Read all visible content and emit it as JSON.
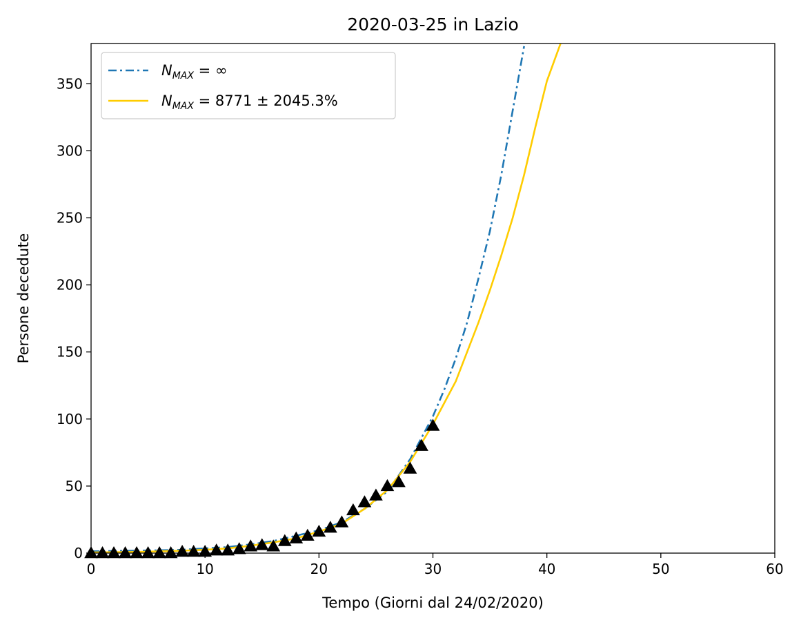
{
  "chart_data": {
    "type": "line",
    "title": "2020-03-25 in Lazio",
    "xlabel": "Tempo (Giorni dal 24/02/2020)",
    "ylabel": "Persone decedute",
    "xlim": [
      0,
      60
    ],
    "ylim": [
      0,
      380
    ],
    "xticks": [
      0,
      10,
      20,
      30,
      40,
      50,
      60
    ],
    "yticks": [
      0,
      50,
      100,
      150,
      200,
      250,
      300,
      350
    ],
    "grid": false,
    "legend_position": "top-left",
    "series": [
      {
        "name": "N_MAX = ∞",
        "kind": "fit-line",
        "style": "dash-dot",
        "color": "#1f77b4",
        "x": [
          0,
          2,
          4,
          6,
          8,
          10,
          12,
          14,
          16,
          18,
          20,
          22,
          24,
          26,
          28,
          30,
          31,
          32,
          33,
          34,
          35,
          36,
          37,
          38
        ],
        "y": [
          1.3,
          1.6,
          1.8,
          2.1,
          2.5,
          3.5,
          4.5,
          6.5,
          9,
          13,
          17,
          23,
          33,
          46,
          70,
          102,
          122,
          145,
          172,
          205,
          240,
          282,
          330,
          378
        ]
      },
      {
        "name": "N_MAX = 8771 ± 2045.3%",
        "kind": "fit-line",
        "style": "solid",
        "color": "#ffcc00",
        "x": [
          0,
          2,
          4,
          6,
          8,
          10,
          12,
          14,
          16,
          18,
          20,
          22,
          24,
          26,
          28,
          30,
          32,
          34,
          35,
          36,
          37,
          38,
          39,
          40,
          41.2
        ],
        "y": [
          0.5,
          0.7,
          0.9,
          1.3,
          1.8,
          2.5,
          3.5,
          5.5,
          8,
          11,
          16,
          22,
          33,
          47,
          68,
          96,
          128,
          172,
          196,
          222,
          250,
          282,
          318,
          352,
          380
        ]
      },
      {
        "name": "",
        "kind": "observed",
        "marker": "triangle",
        "color": "#000000",
        "x": [
          0,
          1,
          2,
          3,
          4,
          5,
          6,
          7,
          8,
          9,
          10,
          11,
          12,
          13,
          14,
          15,
          16,
          17,
          18,
          19,
          20,
          21,
          22,
          23,
          24,
          25,
          26,
          27,
          28,
          29,
          30
        ],
        "y": [
          0,
          0,
          0,
          0,
          0,
          0,
          0,
          0,
          1,
          1,
          1,
          2,
          2,
          3,
          5,
          6,
          5,
          9,
          11,
          13,
          16,
          19,
          23,
          32,
          38,
          43,
          50,
          53,
          63,
          80,
          95
        ]
      }
    ]
  }
}
